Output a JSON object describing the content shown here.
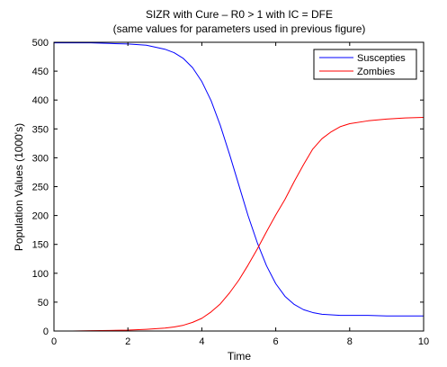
{
  "chart_data": {
    "type": "line",
    "title": "SIZR with Cure – R0 > 1 with IC = DFE",
    "subtitle": "(same values for parameters used in previous figure)",
    "xlabel": "Time",
    "ylabel": "Population Values (1000's)",
    "xlim": [
      0,
      10
    ],
    "ylim": [
      0,
      500
    ],
    "xticks": [
      0,
      2,
      4,
      6,
      8,
      10
    ],
    "yticks": [
      0,
      50,
      100,
      150,
      200,
      250,
      300,
      350,
      400,
      450,
      500
    ],
    "grid": false,
    "legend_position": "top-right",
    "series": [
      {
        "name": "Suscepties",
        "color": "#0000ff",
        "x": [
          0,
          0.5,
          1,
          1.5,
          2,
          2.5,
          3,
          3.25,
          3.5,
          3.75,
          4,
          4.25,
          4.5,
          4.75,
          5,
          5.25,
          5.5,
          5.75,
          6,
          6.25,
          6.5,
          6.75,
          7,
          7.25,
          7.5,
          7.75,
          8,
          8.5,
          9,
          9.5,
          10
        ],
        "y": [
          499,
          499,
          499,
          498,
          497,
          495,
          488,
          482,
          472,
          456,
          432,
          399,
          356,
          306,
          253,
          200,
          153,
          113,
          82,
          60,
          46,
          37,
          32,
          29,
          28,
          27,
          27,
          27,
          26,
          26,
          26
        ]
      },
      {
        "name": "Zombies",
        "color": "#ff0000",
        "x": [
          0,
          0.5,
          1,
          1.5,
          2,
          2.5,
          3,
          3.25,
          3.5,
          3.75,
          4,
          4.25,
          4.5,
          4.75,
          5,
          5.25,
          5.5,
          5.75,
          6,
          6.25,
          6.5,
          6.75,
          7,
          7.25,
          7.5,
          7.75,
          8,
          8.5,
          9,
          9.5,
          10
        ],
        "y": [
          0,
          0,
          0.5,
          1,
          1.5,
          3,
          5,
          7,
          10,
          15,
          22,
          33,
          47,
          66,
          88,
          114,
          142,
          172,
          201,
          228,
          259,
          288,
          315,
          333,
          345,
          354,
          359,
          364,
          367,
          369,
          370
        ]
      }
    ]
  }
}
